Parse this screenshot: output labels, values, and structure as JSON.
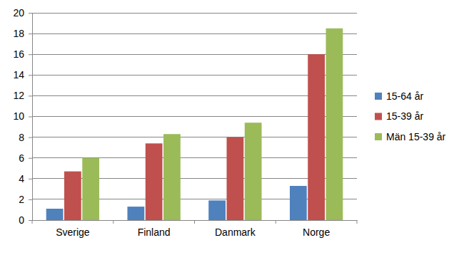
{
  "chart_data": {
    "type": "bar",
    "categories": [
      "Sverige",
      "Finland",
      "Danmark",
      "Norge"
    ],
    "series": [
      {
        "name": "15-64 år",
        "color": "#4f81bd",
        "values": [
          1.1,
          1.3,
          1.9,
          3.3
        ]
      },
      {
        "name": "15-39 år",
        "color": "#c0504d",
        "values": [
          4.7,
          7.4,
          8.0,
          16.0
        ]
      },
      {
        "name": "Män 15-39 år",
        "color": "#9bbb59",
        "values": [
          6.0,
          8.3,
          9.4,
          18.5
        ]
      }
    ],
    "ylim": [
      0,
      20
    ],
    "yticks": [
      0,
      2,
      4,
      6,
      8,
      10,
      12,
      14,
      16,
      18,
      20
    ],
    "grid": true,
    "legend": "right"
  }
}
